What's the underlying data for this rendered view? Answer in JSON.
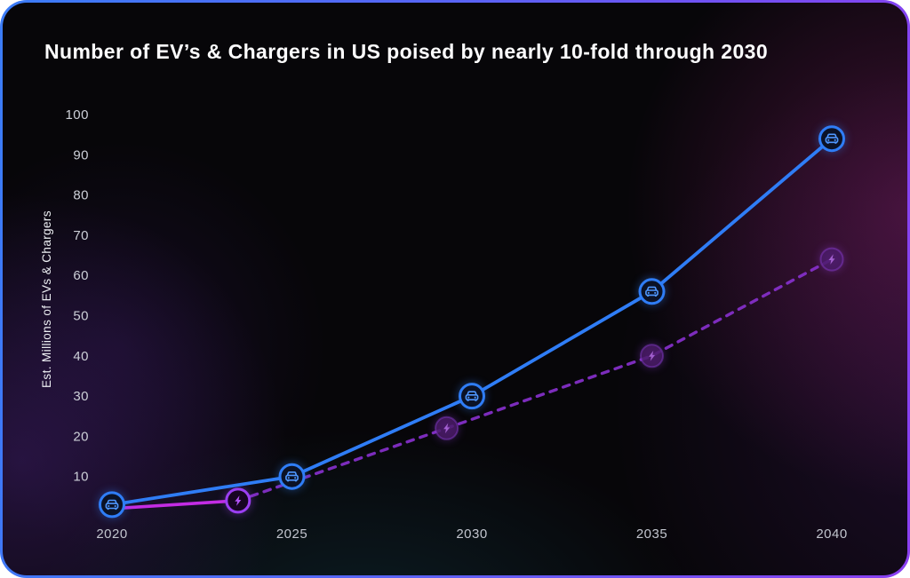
{
  "card": {
    "border_gradient": [
      "#3B7CF7",
      "#8A3FF0"
    ],
    "background": "#070609"
  },
  "chart_data": {
    "type": "line",
    "title": "Number of EV’s & Chargers in US poised by nearly 10-fold through 2030",
    "xlabel": "",
    "ylabel": "Est. Millions of EVs & Chargers",
    "x_ticks": [
      2020,
      2025,
      2030,
      2035,
      2040
    ],
    "y_ticks": [
      10,
      20,
      30,
      40,
      50,
      60,
      70,
      80,
      90,
      100
    ],
    "xlim": [
      2018.5,
      2041.5
    ],
    "ylim": [
      0,
      100
    ],
    "grid": false,
    "legend_position": "none",
    "series": [
      {
        "name": "EVs",
        "marker": "car-icon",
        "line_style": "solid",
        "color": "#2F7DF6",
        "marker_ring_color": "#2F7DF6",
        "marker_fill": "#0B1226",
        "icon_color": "#4F97FF",
        "x": [
          2020,
          2025,
          2030,
          2035,
          2040
        ],
        "values": [
          3,
          10,
          30,
          56,
          94
        ]
      },
      {
        "name": "Chargers",
        "marker": "lightning-icon",
        "line_style": "solid-then-dashed",
        "solid_color": "#C32CE3",
        "dashed_color": "#8730CC",
        "marker_ring_color": "#9B3FF2",
        "marker_fill": "#170522",
        "dim_marker_fill": "#471A63",
        "dim_marker_ring": "#8A3FD0",
        "bolt_bright_color": "#B253F7",
        "bolt_dim_color": "#B26BE0",
        "x": [
          2020,
          2023.5,
          2029.3,
          2035,
          2040
        ],
        "values": [
          2,
          4,
          22,
          40,
          64
        ],
        "markers_at_point_indexes": [
          1,
          2,
          3,
          4
        ]
      }
    ],
    "text_colors": {
      "title": "#FDFDFE",
      "ticks": "#C9CCD4",
      "axis_label": "#EEF0F4"
    }
  }
}
